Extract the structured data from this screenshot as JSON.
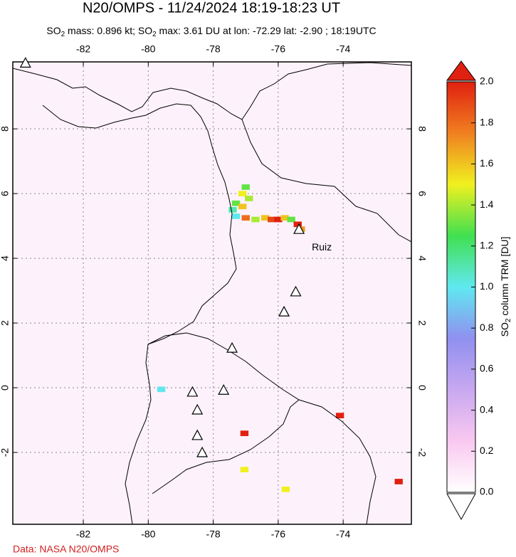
{
  "title": "N20/OMPS - 11/24/2024 18:19-18:23 UT",
  "subtitle": [
    "SO",
    "2",
    " mass: 0.896 kt; SO",
    "2",
    " max: 3.61 DU at lon: -72.29 lat: -2.90 ; 18:19UTC"
  ],
  "map": {
    "xlim": [
      -84.17,
      -71.9
    ],
    "ylim": [
      -4.22,
      10.07
    ],
    "lon_ticks": [
      -82,
      -80,
      -78,
      -76,
      -74
    ],
    "lat_ticks": [
      -2,
      0,
      2,
      4,
      6,
      8
    ],
    "grid": true,
    "volcanoes": [
      {
        "lon": -75.36,
        "lat": 4.9,
        "label": "Ruiz"
      },
      {
        "lon": -75.46,
        "lat": 2.97
      },
      {
        "lon": -75.82,
        "lat": 2.35
      },
      {
        "lon": -77.42,
        "lat": 1.23
      },
      {
        "lon": -78.64,
        "lat": -0.13
      },
      {
        "lon": -77.68,
        "lat": -0.07
      },
      {
        "lon": -78.49,
        "lat": -0.68
      },
      {
        "lon": -78.49,
        "lat": -1.47
      },
      {
        "lon": -78.34,
        "lat": -2.0
      },
      {
        "lon": -83.78,
        "lat": 10.04
      }
    ],
    "pixels": [
      {
        "lon": -77.3,
        "lat": 5.7,
        "value": 1.3
      },
      {
        "lon": -77.1,
        "lat": 6.0,
        "value": 1.5
      },
      {
        "lon": -77.0,
        "lat": 6.2,
        "value": 1.3
      },
      {
        "lon": -77.4,
        "lat": 5.5,
        "value": 1.1
      },
      {
        "lon": -77.3,
        "lat": 5.3,
        "value": 1.0
      },
      {
        "lon": -77.1,
        "lat": 5.6,
        "value": 1.6
      },
      {
        "lon": -76.9,
        "lat": 5.85,
        "value": 1.4
      },
      {
        "lon": -77.0,
        "lat": 5.25,
        "value": 1.8
      },
      {
        "lon": -76.7,
        "lat": 5.2,
        "value": 1.4
      },
      {
        "lon": -76.4,
        "lat": 5.25,
        "value": 1.6
      },
      {
        "lon": -76.2,
        "lat": 5.2,
        "value": 1.9
      },
      {
        "lon": -76.0,
        "lat": 5.2,
        "value": 2.0
      },
      {
        "lon": -75.8,
        "lat": 5.25,
        "value": 1.6
      },
      {
        "lon": -75.6,
        "lat": 5.2,
        "value": 1.3
      },
      {
        "lon": -75.4,
        "lat": 5.05,
        "value": 2.0
      },
      {
        "lon": -75.3,
        "lat": 4.9,
        "value": 1.7
      },
      {
        "lon": -77.04,
        "lat": -1.41,
        "value": 2.0
      },
      {
        "lon": -77.04,
        "lat": -2.53,
        "value": 1.5
      },
      {
        "lon": -75.77,
        "lat": -3.14,
        "value": 1.5
      },
      {
        "lon": -74.1,
        "lat": -0.86,
        "value": 2.0
      },
      {
        "lon": -72.29,
        "lat": -2.9,
        "value": 3.61
      },
      {
        "lon": -79.6,
        "lat": -0.05,
        "value": 1.0
      }
    ]
  },
  "colorbar": {
    "clim": [
      0,
      2
    ],
    "colors": [
      "#ffffff",
      "#f9c8f0",
      "#c8a8f0",
      "#9090f0",
      "#60e8f0",
      "#40e050",
      "#f0f020",
      "#f08020",
      "#e02010"
    ],
    "ticks": [
      {
        "value": 0,
        "label": "0.0"
      },
      {
        "value": 0.2,
        "label": "0.2"
      },
      {
        "value": 0.4,
        "label": "0.4"
      },
      {
        "value": 0.6,
        "label": "0.6"
      },
      {
        "value": 0.8,
        "label": "0.8"
      },
      {
        "value": 1,
        "label": "1.0"
      },
      {
        "value": 1.2,
        "label": "1.2"
      },
      {
        "value": 1.4,
        "label": "1.4"
      },
      {
        "value": 1.6,
        "label": "1.6"
      },
      {
        "value": 1.8,
        "label": "1.8"
      },
      {
        "value": 2,
        "label": "2.0"
      }
    ],
    "label": [
      "SO",
      "2",
      " column TRM [DU]"
    ]
  },
  "source": "Data: NASA N20/OMPS"
}
